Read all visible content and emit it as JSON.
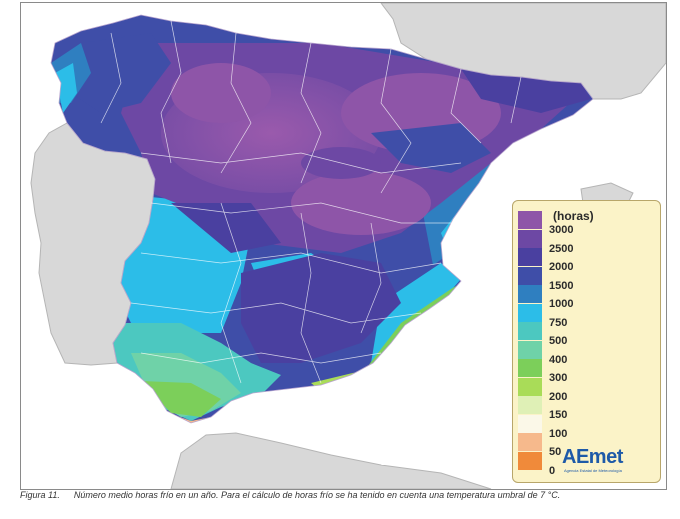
{
  "legend": {
    "title": "(horas)",
    "items": [
      {
        "label": "3000",
        "color": "#8e55a8"
      },
      {
        "label": "2500",
        "color": "#6d48a4"
      },
      {
        "label": "2000",
        "color": "#4a40a0"
      },
      {
        "label": "1500",
        "color": "#3f4ea8"
      },
      {
        "label": "1000",
        "color": "#2f7fc0"
      },
      {
        "label": "750",
        "color": "#2cbde8"
      },
      {
        "label": "500",
        "color": "#4cc8c0"
      },
      {
        "label": "400",
        "color": "#6fd2a8"
      },
      {
        "label": "300",
        "color": "#7ccf5a"
      },
      {
        "label": "200",
        "color": "#a9dc58"
      },
      {
        "label": "150",
        "color": "#dff0b6"
      },
      {
        "label": "100",
        "color": "#fbf8e8"
      },
      {
        "label": "50",
        "color": "#f6b98c"
      },
      {
        "label": "0",
        "color": "#f08a3a"
      }
    ]
  },
  "logo": {
    "name": "AEmet",
    "subtitle": "Agencia Estatal de Meteorología"
  },
  "caption": {
    "figure": "Figura 11.",
    "text": "Número medio horas frío en un año. Para el cálculo de horas frío se ha tenido en cuenta una temperatura umbral de 7 °C."
  }
}
